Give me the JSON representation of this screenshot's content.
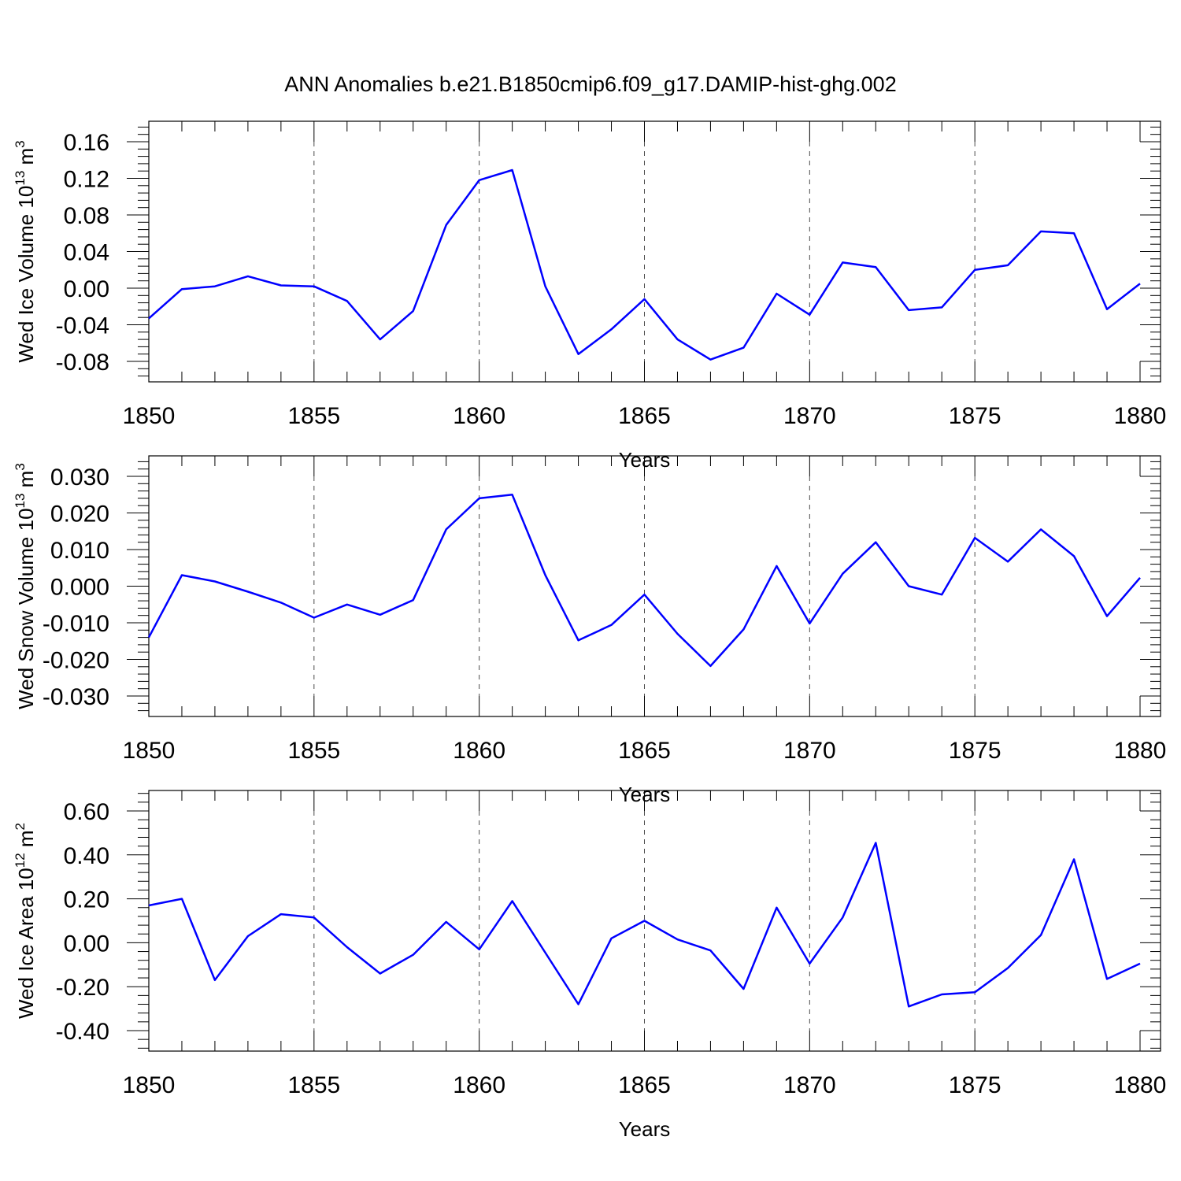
{
  "title": "ANN Anomalies b.e21.B1850cmip6.f09_g17.DAMIP-hist-ghg.002",
  "chart_data": [
    {
      "type": "line",
      "xlabel": "Years",
      "ylabel": "Wed Ice Volume 10",
      "ylabel_exp": "13",
      "ylabel_unit": " m",
      "ylabel_unit_exp": "3",
      "xlim": [
        1850,
        1880
      ],
      "ylim": [
        -0.08,
        0.16
      ],
      "x_ticks": [
        "1850",
        "1855",
        "1860",
        "1865",
        "1870",
        "1875",
        "1880"
      ],
      "y_ticks": [
        "-0.08",
        "-0.04",
        "0.00",
        "0.04",
        "0.08",
        "0.12",
        "0.16"
      ],
      "grid": "vertical dashed at major x ticks",
      "series": [
        {
          "color": "#0000ff",
          "x": [
            1850,
            1851,
            1852,
            1853,
            1854,
            1855,
            1856,
            1857,
            1858,
            1859,
            1860,
            1861,
            1862,
            1863,
            1864,
            1865,
            1866,
            1867,
            1868,
            1869,
            1870,
            1871,
            1872,
            1873,
            1874,
            1875,
            1876,
            1877,
            1878,
            1879,
            1880
          ],
          "values": [
            -0.033,
            -0.001,
            0.002,
            0.013,
            0.003,
            0.002,
            -0.014,
            -0.056,
            -0.025,
            0.069,
            0.118,
            0.129,
            0.002,
            -0.072,
            -0.045,
            -0.012,
            -0.056,
            -0.078,
            -0.065,
            -0.006,
            -0.029,
            0.028,
            0.023,
            -0.024,
            -0.021,
            0.02,
            0.025,
            0.062,
            0.06,
            -0.023,
            0.005
          ]
        }
      ]
    },
    {
      "type": "line",
      "xlabel": "Years",
      "ylabel": "Wed Snow Volume 10",
      "ylabel_exp": "13",
      "ylabel_unit": " m",
      "ylabel_unit_exp": "3",
      "xlim": [
        1850,
        1880
      ],
      "ylim": [
        -0.03,
        0.03
      ],
      "x_ticks": [
        "1850",
        "1855",
        "1860",
        "1865",
        "1870",
        "1875",
        "1880"
      ],
      "y_ticks": [
        "-0.030",
        "-0.020",
        "-0.010",
        "0.000",
        "0.010",
        "0.020",
        "0.030"
      ],
      "grid": "vertical dashed at major x ticks",
      "series": [
        {
          "color": "#0000ff",
          "x": [
            1850,
            1851,
            1852,
            1853,
            1854,
            1855,
            1856,
            1857,
            1858,
            1859,
            1860,
            1861,
            1862,
            1863,
            1864,
            1865,
            1866,
            1867,
            1868,
            1869,
            1870,
            1871,
            1872,
            1873,
            1874,
            1875,
            1876,
            1877,
            1878,
            1879,
            1880
          ],
          "values": [
            -0.014,
            0.003,
            0.0013,
            -0.0015,
            -0.0045,
            -0.0086,
            -0.005,
            -0.0078,
            -0.0038,
            0.0155,
            0.024,
            0.025,
            0.003,
            -0.0148,
            -0.0106,
            -0.0023,
            -0.013,
            -0.0218,
            -0.0118,
            0.0055,
            -0.0102,
            0.0034,
            0.012,
            0.0,
            -0.0023,
            0.0132,
            0.0067,
            0.0155,
            0.0082,
            -0.0082,
            0.0023
          ]
        }
      ]
    },
    {
      "type": "line",
      "xlabel": "Years",
      "ylabel": "Wed Ice Area 10",
      "ylabel_exp": "12",
      "ylabel_unit": " m",
      "ylabel_unit_exp": "2",
      "xlim": [
        1850,
        1880
      ],
      "ylim": [
        -0.4,
        0.6
      ],
      "x_ticks": [
        "1850",
        "1855",
        "1860",
        "1865",
        "1870",
        "1875",
        "1880"
      ],
      "y_ticks": [
        "-0.40",
        "-0.20",
        "0.00",
        "0.20",
        "0.40",
        "0.60"
      ],
      "grid": "vertical dashed at major x ticks",
      "series": [
        {
          "color": "#0000ff",
          "x": [
            1850,
            1851,
            1852,
            1853,
            1854,
            1855,
            1856,
            1857,
            1858,
            1859,
            1860,
            1861,
            1862,
            1863,
            1864,
            1865,
            1866,
            1867,
            1868,
            1869,
            1870,
            1871,
            1872,
            1873,
            1874,
            1875,
            1876,
            1877,
            1878,
            1879,
            1880
          ],
          "values": [
            0.17,
            0.2,
            -0.17,
            0.03,
            0.13,
            0.115,
            -0.02,
            -0.14,
            -0.055,
            0.095,
            -0.03,
            0.19,
            -0.045,
            -0.28,
            0.02,
            0.1,
            0.015,
            -0.035,
            -0.21,
            0.16,
            -0.095,
            0.115,
            0.455,
            -0.29,
            -0.235,
            -0.225,
            -0.115,
            0.035,
            0.38,
            -0.165,
            -0.095
          ]
        }
      ]
    }
  ]
}
